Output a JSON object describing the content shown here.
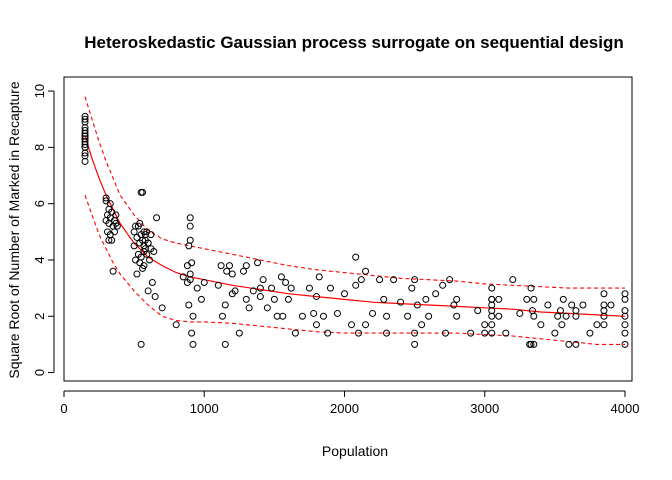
{
  "chart_data": {
    "type": "scatter",
    "title": "Heteroskedastic Gaussian process surrogate on sequential design",
    "xlabel": "Population",
    "ylabel": "Square Root of Number of Marked in Recapture",
    "xlim": [
      0,
      4050
    ],
    "ylim": [
      -0.3,
      10.5
    ],
    "xticks": [
      0,
      1000,
      2000,
      3000,
      4000
    ],
    "yticks": [
      0,
      2,
      4,
      6,
      8,
      10
    ],
    "grid": false,
    "colors": {
      "points": "#000000",
      "fit": "#ff0000"
    },
    "series": [
      {
        "kind": "points",
        "x": [
          150,
          150,
          150,
          150,
          150,
          150,
          150,
          150,
          150,
          150,
          150,
          150,
          150,
          150,
          150,
          150,
          150,
          300,
          300,
          300,
          310,
          310,
          320,
          320,
          320,
          330,
          330,
          330,
          340,
          340,
          350,
          350,
          360,
          360,
          370,
          370,
          380,
          500,
          500,
          510,
          510,
          520,
          520,
          530,
          530,
          540,
          540,
          540,
          550,
          550,
          560,
          560,
          570,
          570,
          570,
          580,
          580,
          590,
          590,
          600,
          600,
          610,
          620,
          630,
          650,
          550,
          560,
          570,
          580,
          600,
          620,
          640,
          660,
          700,
          800,
          850,
          880,
          880,
          890,
          890,
          900,
          900,
          900,
          900,
          900,
          910,
          910,
          920,
          920,
          950,
          980,
          1000,
          1100,
          1120,
          1130,
          1150,
          1160,
          1180,
          1200,
          1200,
          1220,
          1250,
          1280,
          1300,
          1300,
          1320,
          1350,
          1380,
          1400,
          1400,
          1420,
          1450,
          1480,
          1500,
          1520,
          1550,
          1560,
          1580,
          1600,
          1620,
          1650,
          1700,
          1750,
          1780,
          1800,
          1800,
          1820,
          1850,
          1880,
          1900,
          1950,
          2000,
          2050,
          2080,
          2080,
          2100,
          2120,
          2150,
          2150,
          2200,
          2250,
          2280,
          2300,
          2300,
          2350,
          2400,
          2450,
          2480,
          2500,
          2500,
          2520,
          2550,
          2580,
          2600,
          2650,
          2700,
          2720,
          2750,
          2780,
          2800,
          2800,
          2900,
          2950,
          3000,
          3000,
          3050,
          3050,
          3050,
          3050,
          3050,
          3050,
          3050,
          3100,
          3100,
          3150,
          3200,
          3250,
          3300,
          3320,
          3330,
          3340,
          3350,
          3350,
          3350,
          3400,
          3450,
          3500,
          3520,
          3540,
          3550,
          3560,
          3580,
          3600,
          3620,
          3650,
          3650,
          3700,
          3750,
          3800,
          3850,
          3850,
          3850,
          3850,
          3850,
          3900,
          4000,
          4000,
          4000,
          4000,
          4000,
          4000,
          4000,
          550,
          1150,
          2500,
          3650,
          3330,
          3050
        ],
        "y": [
          7.5,
          7.7,
          7.8,
          8.0,
          8.0,
          8.1,
          8.2,
          8.3,
          8.3,
          8.4,
          8.4,
          8.5,
          8.6,
          8.7,
          8.9,
          9.0,
          9.1,
          5.4,
          6.1,
          6.2,
          5.0,
          5.6,
          4.7,
          5.3,
          5.8,
          4.9,
          5.5,
          6.0,
          4.7,
          5.7,
          3.6,
          5.2,
          5.4,
          5.0,
          5.6,
          5.3,
          5.2,
          5.0,
          4.5,
          5.2,
          4.0,
          4.8,
          3.5,
          5.2,
          4.2,
          5.3,
          4.6,
          3.9,
          4.9,
          4.1,
          4.7,
          3.7,
          5.0,
          3.8,
          4.3,
          4.9,
          4.4,
          5.0,
          4.2,
          4.6,
          2.9,
          4.0,
          4.9,
          3.2,
          2.7,
          6.4,
          6.4,
          4.5,
          4.7,
          4.6,
          4.4,
          4.3,
          5.5,
          2.3,
          1.7,
          3.4,
          3.2,
          3.8,
          4.5,
          2.4,
          5.5,
          5.2,
          4.7,
          3.3,
          3.5,
          3.9,
          1.4,
          2.0,
          1.0,
          3.0,
          2.6,
          3.2,
          3.1,
          3.8,
          2.0,
          1.0,
          3.6,
          3.8,
          2.8,
          3.5,
          2.9,
          1.4,
          3.6,
          2.6,
          3.8,
          2.3,
          2.9,
          3.9,
          2.7,
          3.0,
          3.3,
          2.3,
          3.0,
          2.6,
          2.0,
          3.4,
          2.0,
          3.2,
          2.6,
          3.0,
          1.4,
          2.0,
          3.0,
          2.1,
          2.7,
          1.7,
          3.4,
          2.0,
          1.4,
          3.0,
          2.1,
          2.8,
          1.7,
          4.1,
          3.1,
          1.4,
          3.3,
          1.7,
          3.6,
          2.1,
          3.3,
          2.6,
          1.4,
          2.0,
          3.3,
          2.5,
          2.0,
          3.0,
          1.0,
          3.3,
          2.4,
          1.7,
          2.6,
          2.0,
          2.8,
          3.1,
          1.4,
          3.3,
          2.4,
          2.6,
          2.0,
          1.4,
          2.2,
          1.7,
          1.4,
          1.7,
          2.0,
          2.2,
          2.6,
          3.0,
          1.4,
          2.4,
          2.0,
          2.6,
          1.4,
          3.3,
          2.1,
          2.6,
          1.0,
          3.0,
          2.2,
          1.0,
          2.6,
          2.0,
          1.7,
          2.4,
          1.4,
          2.0,
          2.2,
          1.7,
          2.6,
          2.0,
          1.0,
          2.4,
          2.0,
          1.0,
          2.4,
          1.4,
          1.7,
          2.8,
          2.4,
          2.2,
          2.0,
          1.7,
          2.4,
          1.0,
          1.4,
          1.7,
          2.0,
          2.2,
          2.6,
          2.8,
          1.0,
          2.4,
          1.4,
          2.2,
          1.0,
          2.6
        ]
      },
      {
        "kind": "mean",
        "x": [
          150,
          200,
          250,
          300,
          350,
          400,
          500,
          600,
          700,
          800,
          900,
          1000,
          1200,
          1400,
          1600,
          1800,
          2000,
          2200,
          2400,
          2600,
          2800,
          3000,
          3200,
          3400,
          3600,
          3800,
          4000
        ],
        "y": [
          8.4,
          7.6,
          6.9,
          6.3,
          5.8,
          5.3,
          4.6,
          4.1,
          3.8,
          3.55,
          3.4,
          3.3,
          3.1,
          2.95,
          2.8,
          2.7,
          2.6,
          2.5,
          2.45,
          2.4,
          2.35,
          2.3,
          2.25,
          2.15,
          2.1,
          2.05,
          2.0
        ]
      },
      {
        "kind": "upper",
        "x": [
          150,
          200,
          250,
          300,
          350,
          400,
          500,
          600,
          700,
          800,
          900,
          1000,
          1200,
          1400,
          1600,
          1800,
          2000,
          2200,
          2400,
          2600,
          2800,
          3000,
          3200,
          3400,
          3600,
          3800,
          4000
        ],
        "y": [
          9.8,
          9.0,
          8.2,
          7.5,
          6.9,
          6.3,
          5.6,
          5.05,
          4.75,
          4.6,
          4.5,
          4.4,
          4.2,
          4.0,
          3.8,
          3.65,
          3.55,
          3.45,
          3.35,
          3.3,
          3.25,
          3.15,
          3.1,
          3.05,
          3.0,
          3.0,
          3.0
        ]
      },
      {
        "kind": "lower",
        "x": [
          150,
          200,
          250,
          300,
          350,
          400,
          500,
          600,
          700,
          800,
          900,
          1000,
          1200,
          1400,
          1600,
          1800,
          2000,
          2200,
          2400,
          2600,
          2800,
          3000,
          3200,
          3400,
          3600,
          3800,
          4000
        ],
        "y": [
          6.3,
          5.6,
          4.9,
          4.4,
          3.9,
          3.5,
          2.9,
          2.4,
          2.0,
          1.85,
          1.8,
          1.8,
          1.75,
          1.65,
          1.55,
          1.45,
          1.4,
          1.4,
          1.4,
          1.4,
          1.4,
          1.35,
          1.3,
          1.2,
          1.1,
          1.0,
          1.0
        ]
      }
    ]
  }
}
